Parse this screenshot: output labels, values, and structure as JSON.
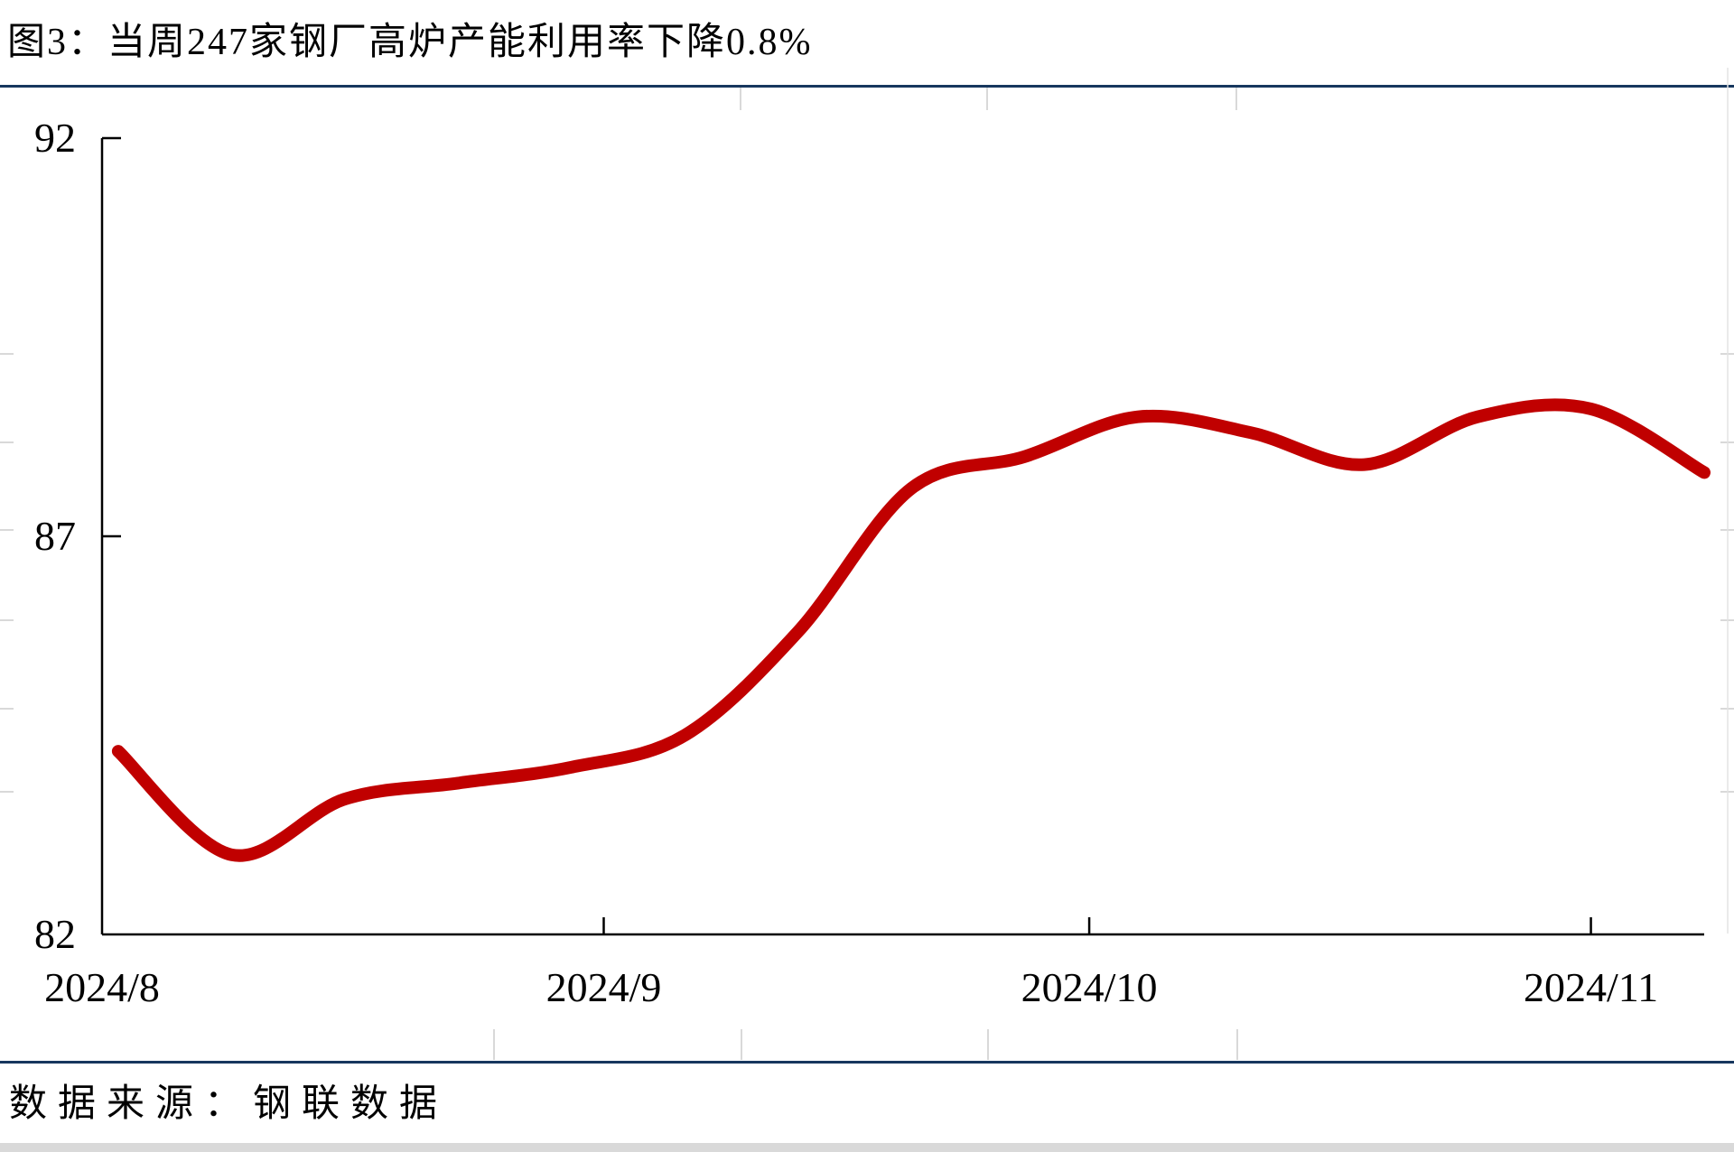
{
  "title": "图3：当周247家钢厂高炉产能利用率下降0.8%",
  "footer": {
    "source_label": "数据来源：钢联数据"
  },
  "colors": {
    "line": "#C00000",
    "rule": "#17375E",
    "axis": "#000000",
    "stub": "#D9D9D9",
    "bottom_strip": "#D9D9D9"
  },
  "chart_data": {
    "type": "line",
    "title": "图3：当周247家钢厂高炉产能利用率下降0.8%",
    "x": [
      "2024/8/2",
      "2024/8/9",
      "2024/8/16",
      "2024/8/23",
      "2024/8/30",
      "2024/9/6",
      "2024/9/13",
      "2024/9/20",
      "2024/9/27",
      "2024/10/4",
      "2024/10/11",
      "2024/10/18",
      "2024/10/25",
      "2024/11/1",
      "2024/11/8"
    ],
    "values": [
      84.3,
      83.0,
      83.7,
      83.9,
      84.1,
      84.5,
      85.8,
      87.6,
      88.0,
      88.5,
      88.3,
      87.9,
      88.5,
      88.6,
      87.8
    ],
    "ylim": [
      82,
      92
    ],
    "yticks": [
      92,
      87,
      82
    ],
    "xticks": [
      "2024/8",
      "2024/9",
      "2024/10",
      "2024/11"
    ],
    "xtick_dates": [
      "2024/8/1",
      "2024/9/1",
      "2024/10/1",
      "2024/11/1"
    ],
    "x_range": [
      "2024/8/1",
      "2024/11/8"
    ],
    "grid": false,
    "legend": "none",
    "line_color": "#C00000",
    "smooth": true
  }
}
